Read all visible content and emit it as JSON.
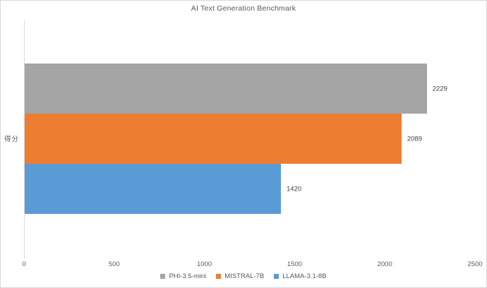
{
  "chart_data": {
    "type": "bar",
    "orientation": "horizontal",
    "title": "AI Text Generation Benchmark",
    "ylabel": "得分",
    "xlabel": "",
    "categories": [
      "PHI-3.5-mini",
      "MISTRAL-7B",
      "LLAMA-3.1-8B"
    ],
    "series": [
      {
        "name": "PHI-3.5-mini",
        "value": 2229,
        "color": "#A5A5A5"
      },
      {
        "name": "MISTRAL-7B",
        "value": 2089,
        "color": "#ED7D31"
      },
      {
        "name": "LLAMA-3.1-8B",
        "value": 1420,
        "color": "#5B9BD5"
      }
    ],
    "data_labels": [
      2229,
      2089,
      1420
    ],
    "xlim": [
      0,
      2500
    ],
    "xticks": [
      0,
      500,
      1000,
      1500,
      2000,
      2500
    ],
    "grid": false,
    "legend_position": "bottom",
    "legend_entries": [
      "PHI-3.5-mini",
      "MISTRAL-7B",
      "LLAMA-3.1-8B"
    ]
  },
  "colors": {
    "title_text": "#595959",
    "axis_text": "#595959",
    "data_label_text": "#404040",
    "axis_line": "#D9D9D9",
    "chart_border": "#D9D9D9",
    "background": "#FFFFFF"
  }
}
